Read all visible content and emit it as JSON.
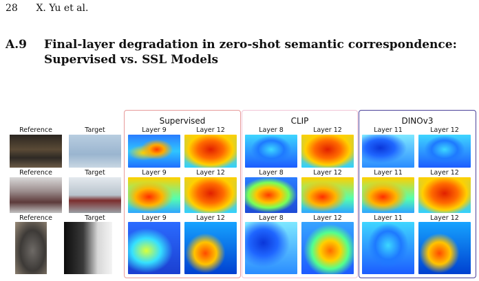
{
  "header": {
    "page_number": "28",
    "authors": "X. Yu et al."
  },
  "section": {
    "number": "A.9",
    "title_line1": "Final-layer degradation in zero-shot semantic correspondence:",
    "title_line2": "Supervised vs. SSL Models"
  },
  "figure": {
    "columns": {
      "reference": "Reference",
      "target": "Target"
    },
    "groups": [
      {
        "name": "Supervised",
        "layers": [
          "Layer 9",
          "Layer 12"
        ]
      },
      {
        "name": "CLIP",
        "layers": [
          "Layer 8",
          "Layer 12"
        ]
      },
      {
        "name": "DINOv3",
        "layers": [
          "Layer 11",
          "Layer 12"
        ]
      }
    ],
    "colors": {
      "supervised_border": "#e79a9a",
      "clip_border": "#f2c4d6",
      "dinov3_border": "#4a3f98"
    }
  }
}
